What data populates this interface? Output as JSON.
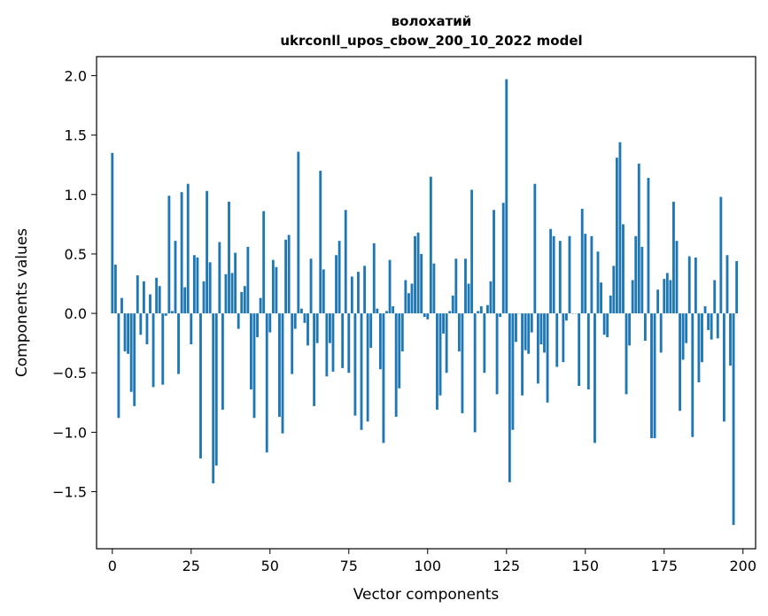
{
  "chart_data": {
    "type": "bar",
    "title": "волохатий",
    "subtitle": "ukrconll_upos_cbow_200_10_2022 model",
    "xlabel": "Vector components",
    "ylabel": "Components values",
    "xlim": [
      -5,
      204
    ],
    "ylim": [
      -1.98,
      2.16
    ],
    "xticks": [
      0,
      25,
      50,
      75,
      100,
      125,
      150,
      175,
      200
    ],
    "xtick_labels": [
      "0",
      "25",
      "50",
      "75",
      "100",
      "125",
      "150",
      "175",
      "200"
    ],
    "yticks": [
      2.0,
      1.5,
      1.0,
      0.5,
      0.0,
      -0.5,
      -1.0,
      -1.5
    ],
    "ytick_labels": [
      "2.0",
      "1.5",
      "1.0",
      "0.5",
      "0.0",
      "−0.5",
      "−1.0",
      "−1.5"
    ],
    "grid": false,
    "legend": "none",
    "bar_color": "#1f77b4",
    "values": [
      1.35,
      0.41,
      -0.88,
      0.13,
      -0.32,
      -0.34,
      -0.66,
      -0.78,
      0.32,
      -0.18,
      0.27,
      -0.26,
      0.16,
      -0.62,
      0.3,
      0.23,
      -0.6,
      -0.02,
      0.99,
      0.02,
      0.61,
      -0.51,
      1.02,
      0.22,
      1.09,
      -0.26,
      0.49,
      0.47,
      -1.22,
      0.27,
      1.03,
      0.43,
      -1.43,
      -1.28,
      0.6,
      -0.81,
      0.33,
      0.94,
      0.34,
      0.51,
      -0.13,
      0.18,
      0.23,
      0.56,
      -0.64,
      -0.88,
      -0.2,
      0.13,
      0.86,
      -1.17,
      -0.16,
      0.45,
      0.39,
      -0.87,
      -1.01,
      0.62,
      0.66,
      -0.51,
      -0.13,
      1.36,
      0.04,
      -0.08,
      -0.27,
      0.46,
      -0.78,
      -0.25,
      1.2,
      0.37,
      -0.53,
      -0.25,
      -0.49,
      0.49,
      0.61,
      -0.46,
      0.87,
      -0.5,
      0.31,
      -0.86,
      0.35,
      -0.98,
      0.4,
      -0.91,
      -0.29,
      0.59,
      0.04,
      -0.47,
      -1.09,
      0.02,
      0.45,
      0.06,
      -0.87,
      -0.63,
      -0.32,
      0.28,
      0.17,
      0.25,
      0.65,
      0.68,
      0.5,
      -0.03,
      -0.05,
      1.15,
      0.42,
      -0.81,
      -0.69,
      -0.17,
      -0.5,
      0.02,
      0.15,
      0.46,
      -0.32,
      -0.84,
      0.46,
      0.25,
      1.04,
      -1.0,
      0.02,
      0.06,
      -0.5,
      0.07,
      0.27,
      0.87,
      -0.68,
      -0.03,
      0.93,
      1.97,
      -1.42,
      -0.98,
      -0.24,
      0.0,
      -0.69,
      -0.31,
      -0.34,
      -0.16,
      1.09,
      -0.59,
      -0.26,
      -0.33,
      -0.75,
      0.71,
      0.65,
      -0.45,
      0.61,
      -0.41,
      -0.06,
      0.65,
      0.0,
      0.0,
      -0.61,
      0.88,
      0.67,
      -0.64,
      0.65,
      -1.09,
      0.52,
      0.26,
      -0.18,
      -0.2,
      0.15,
      0.4,
      1.31,
      1.44,
      0.75,
      -0.68,
      -0.27,
      0.28,
      0.65,
      1.26,
      0.56,
      -0.23,
      1.14,
      -1.05,
      -1.05,
      0.2,
      -0.33,
      0.29,
      0.34,
      0.28,
      0.94,
      0.61,
      -0.82,
      -0.39,
      -0.25,
      0.48,
      -1.04,
      0.47,
      -0.58,
      -0.41,
      0.06,
      -0.14,
      -0.22,
      0.28,
      -0.21,
      0.98,
      -0.91,
      0.49,
      -0.44,
      -1.78,
      0.44
    ]
  }
}
